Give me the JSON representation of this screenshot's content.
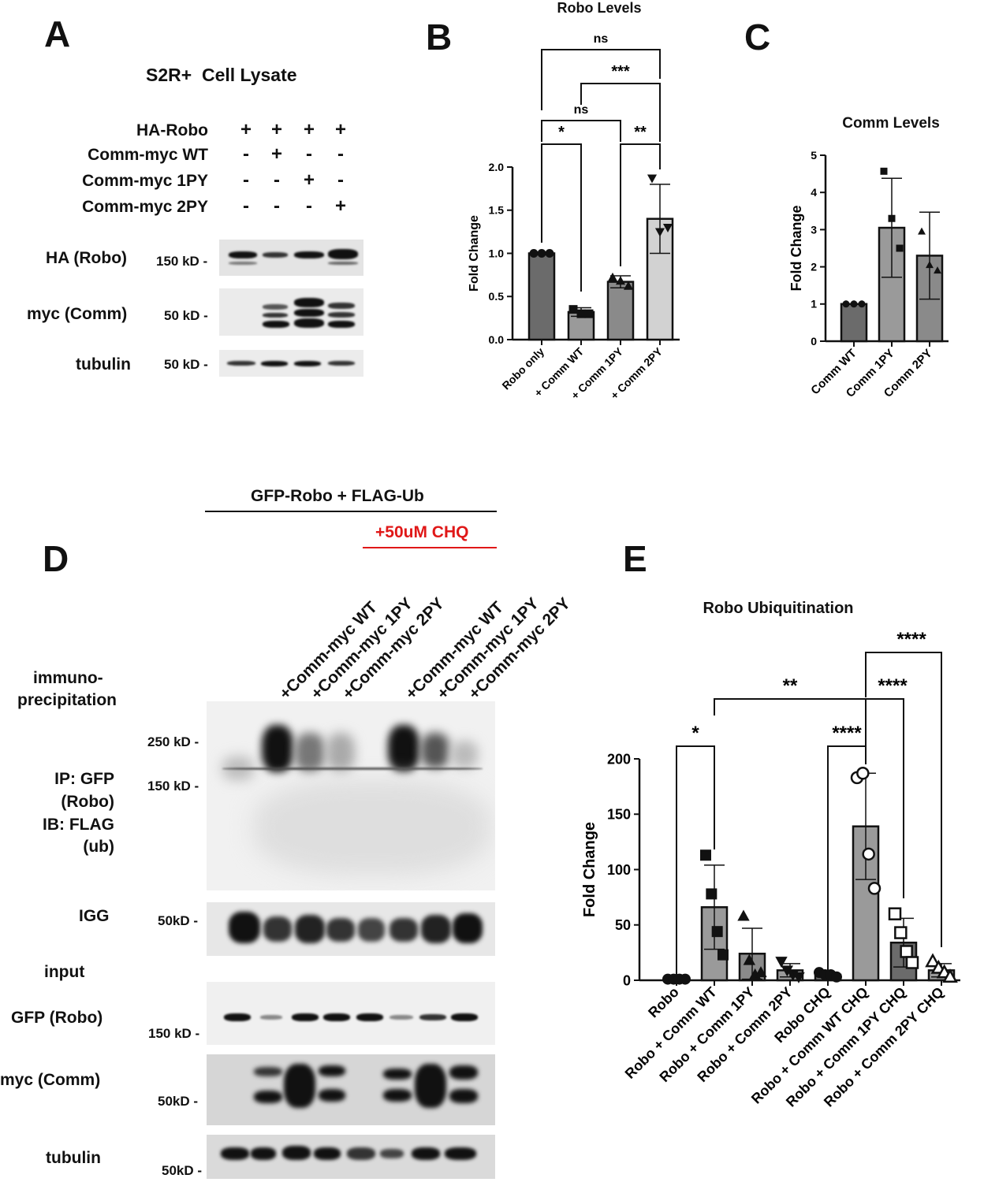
{
  "panelA": {
    "letter": "A",
    "title": "S2R+  Cell Lysate",
    "conditions": [
      {
        "label": "HA-Robo",
        "signs": [
          "+",
          "+",
          "+",
          "+"
        ]
      },
      {
        "label": "Comm-myc WT",
        "signs": [
          "-",
          "+",
          "-",
          "-"
        ]
      },
      {
        "label": "Comm-myc 1PY",
        "signs": [
          "-",
          "-",
          "+",
          "-"
        ]
      },
      {
        "label": "Comm-myc 2PY",
        "signs": [
          "-",
          "-",
          "-",
          "+"
        ]
      }
    ],
    "blots": [
      {
        "label": "HA (Robo)",
        "mw": "150 kD -"
      },
      {
        "label": "myc (Comm)",
        "mw": "50 kD -"
      },
      {
        "label": "tubulin",
        "mw": "50 kD -"
      }
    ]
  },
  "chartB": {
    "letter": "B",
    "title": "Robo Levels",
    "ylabel": "Fold Change",
    "yticks": [
      "0.0",
      "0.5",
      "1.0",
      "1.5",
      "2.0"
    ],
    "categories": [
      "Robo only",
      "+ Comm WT",
      "+ Comm 1PY",
      "+ Comm 2PY"
    ],
    "sig": [
      "*",
      "**",
      "ns",
      "***",
      "ns"
    ]
  },
  "chartC": {
    "letter": "C",
    "title": "Comm Levels",
    "ylabel": "Fold Change",
    "yticks": [
      "0",
      "1",
      "2",
      "3",
      "4",
      "5"
    ],
    "categories": [
      "Comm WT",
      "Comm 1PY",
      "Comm 2PY"
    ]
  },
  "panelD": {
    "letter": "D",
    "header": "GFP-Robo + FLAG-Ub",
    "chq": "+50uM CHQ",
    "lanes": [
      "+Comm-myc WT",
      "+Comm-myc 1PY",
      "+Comm-myc 2PY",
      "+Comm-myc WT",
      "+Comm-myc 1PY",
      "+Comm-myc 2PY"
    ],
    "ip_label_1": "immuno-",
    "ip_label_2": "precipitation",
    "ip_rows": [
      "IP: GFP",
      "(Robo)",
      "IB: FLAG",
      "(ub)"
    ],
    "mw_250": "250 kD -",
    "mw_150": "150 kD -",
    "igg_label": "IGG",
    "igg_mw": "50kD -",
    "input_label": "input",
    "gfp_label": "GFP (Robo)",
    "gfp_mw": "150 kD -",
    "myc_label": "myc (Comm)",
    "myc_mw": "50kD -",
    "tub_label": "tubulin",
    "tub_mw": "50kD -"
  },
  "chartE": {
    "letter": "E",
    "title": "Robo Ubiquitination",
    "ylabel": "Fold Change",
    "yticks": [
      "0",
      "50",
      "100",
      "150",
      "200"
    ],
    "categories": [
      "Robo",
      "Robo + Comm WT",
      "Robo + Comm 1PY",
      "Robo + Comm 2PY",
      "Robo CHQ",
      "Robo + Comm WT CHQ",
      "Robo + Comm 1PY CHQ",
      "Robo + Comm 2PY CHQ"
    ],
    "sig": [
      "*",
      "**",
      "****",
      "****",
      "****"
    ]
  },
  "chart_data": [
    {
      "type": "bar",
      "title": "Robo Levels",
      "ylabel": "Fold Change",
      "ylim": [
        0,
        2.0
      ],
      "categories": [
        "Robo only",
        "+ Comm WT",
        "+ Comm 1PY",
        "+ Comm 2PY"
      ],
      "values": [
        1.0,
        0.32,
        0.67,
        1.4
      ],
      "sd": [
        0.0,
        0.05,
        0.07,
        0.4
      ],
      "points": [
        [
          1.0,
          1.0,
          1.0
        ],
        [
          0.35,
          0.3,
          0.3
        ],
        [
          0.72,
          0.68,
          0.62
        ],
        [
          1.87,
          1.25,
          1.3
        ]
      ],
      "bar_colors": [
        "#6b6b6b",
        "#9a9a9a",
        "#8a8a8a",
        "#d2d2d2"
      ],
      "markers": [
        "circle",
        "square",
        "triangle",
        "triangle-down"
      ],
      "significance": [
        {
          "pair": [
            0,
            1
          ],
          "label": "*"
        },
        {
          "pair": [
            2,
            3
          ],
          "label": "**"
        },
        {
          "pair": [
            0,
            2
          ],
          "label": "ns"
        },
        {
          "pair": [
            1,
            3
          ],
          "label": "***"
        },
        {
          "pair": [
            0,
            3
          ],
          "label": "ns"
        }
      ]
    },
    {
      "type": "bar",
      "title": "Comm Levels",
      "ylabel": "Fold Change",
      "ylim": [
        0,
        5
      ],
      "categories": [
        "Comm WT",
        "Comm 1PY",
        "Comm 2PY"
      ],
      "values": [
        1.0,
        3.05,
        2.3
      ],
      "sd": [
        0.0,
        1.33,
        1.17
      ],
      "points": [
        [
          1.0,
          1.0,
          1.0
        ],
        [
          4.57,
          3.3,
          2.5
        ],
        [
          2.95,
          2.05,
          1.9
        ]
      ],
      "bar_colors": [
        "#6b6b6b",
        "#9a9a9a",
        "#8a8a8a"
      ],
      "markers": [
        "circle",
        "square",
        "triangle"
      ]
    },
    {
      "type": "bar",
      "title": "Robo Ubiquitination",
      "ylabel": "Fold Change",
      "ylim": [
        0,
        200
      ],
      "categories": [
        "Robo",
        "Robo + Comm WT",
        "Robo + Comm 1PY",
        "Robo + Comm 2PY",
        "Robo CHQ",
        "Robo + Comm WT CHQ",
        "Robo + Comm 1PY CHQ",
        "Robo + Comm 2PY CHQ"
      ],
      "values": [
        1,
        66,
        24,
        9,
        5,
        139,
        34,
        9
      ],
      "sd": [
        0,
        38,
        23,
        6,
        2,
        48,
        22,
        6
      ],
      "points": [
        [
          1,
          1,
          1,
          1
        ],
        [
          113,
          78,
          44,
          23
        ],
        [
          58,
          18,
          5,
          7
        ],
        [
          17,
          9,
          5,
          3
        ],
        [
          7,
          5,
          5,
          3
        ],
        [
          183,
          187,
          114,
          83
        ],
        [
          60,
          43,
          26,
          16
        ],
        [
          17,
          11,
          7,
          3
        ]
      ],
      "bar_colors": [
        "#6b6b6b",
        "#9a9a9a",
        "#8a8a8a",
        "#9a9a9a",
        "#6b6b6b",
        "#9a9a9a",
        "#6b6b6b",
        "#9a9a9a"
      ],
      "markers": [
        "circle",
        "square",
        "triangle",
        "triangle-down",
        "circle",
        "circle-open",
        "square-open",
        "triangle-open"
      ],
      "significance": [
        {
          "pair": [
            0,
            1
          ],
          "label": "*"
        },
        {
          "pair": [
            1,
            5
          ],
          "label": "**"
        },
        {
          "pair": [
            4,
            5
          ],
          "label": "****"
        },
        {
          "pair": [
            5,
            6
          ],
          "label": "****"
        },
        {
          "pair": [
            5,
            7
          ],
          "label": "****"
        }
      ]
    }
  ]
}
